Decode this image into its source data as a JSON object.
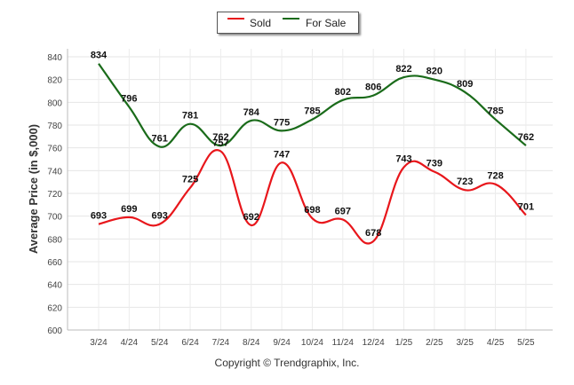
{
  "chart_data": {
    "type": "line",
    "categories": [
      "3/24",
      "4/24",
      "5/24",
      "6/24",
      "7/24",
      "8/24",
      "9/24",
      "10/24",
      "11/24",
      "12/24",
      "1/25",
      "2/25",
      "3/25",
      "4/25",
      "5/25"
    ],
    "series": [
      {
        "name": "Sold",
        "color": "#e8161b",
        "values": [
          693,
          699,
          693,
          725,
          757,
          692,
          747,
          698,
          697,
          678,
          743,
          739,
          723,
          728,
          701
        ]
      },
      {
        "name": "For Sale",
        "color": "#1a6b1a",
        "values": [
          834,
          796,
          761,
          781,
          762,
          784,
          775,
          785,
          802,
          806,
          822,
          820,
          809,
          785,
          762
        ]
      }
    ],
    "ylabel": "Average Price (in $,000)",
    "xlabel": "",
    "ylim": [
      600,
      840
    ],
    "yticks": [
      600,
      620,
      640,
      660,
      680,
      700,
      720,
      740,
      760,
      780,
      800,
      820,
      840
    ],
    "grid": true,
    "legend_position": "top-center"
  },
  "footer": {
    "copyright": "Copyright © Trendgraphix, Inc."
  }
}
